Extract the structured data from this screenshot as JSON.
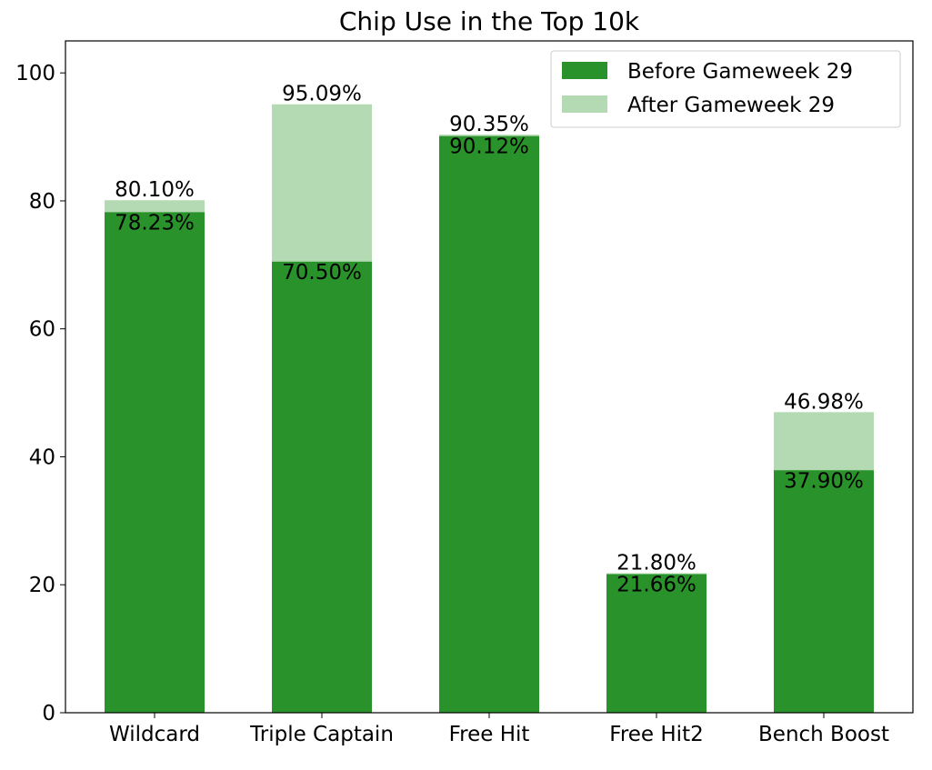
{
  "chart_data": {
    "type": "bar",
    "stacked_overlay": true,
    "title": "Chip Use in the Top 10k",
    "xlabel": "",
    "ylabel": "",
    "categories": [
      "Wildcard",
      "Triple Captain",
      "Free Hit",
      "Free Hit2",
      "Bench Boost"
    ],
    "series": [
      {
        "name": "Before Gameweek 29",
        "color": "#2a922a",
        "values": [
          78.23,
          70.5,
          90.12,
          21.66,
          37.9
        ],
        "labels": [
          "78.23%",
          "70.50%",
          "90.12%",
          "21.66%",
          "37.90%"
        ]
      },
      {
        "name": "After Gameweek 29",
        "color": "#b4dab4",
        "values": [
          80.1,
          95.09,
          90.35,
          21.8,
          46.98
        ],
        "labels": [
          "80.10%",
          "95.09%",
          "90.35%",
          "21.80%",
          "46.98%"
        ]
      }
    ],
    "ylim": [
      0,
      105
    ],
    "yticks": [
      "0",
      "20",
      "40",
      "60",
      "80",
      "100"
    ],
    "legend_position": "top-right",
    "grid": false
  }
}
